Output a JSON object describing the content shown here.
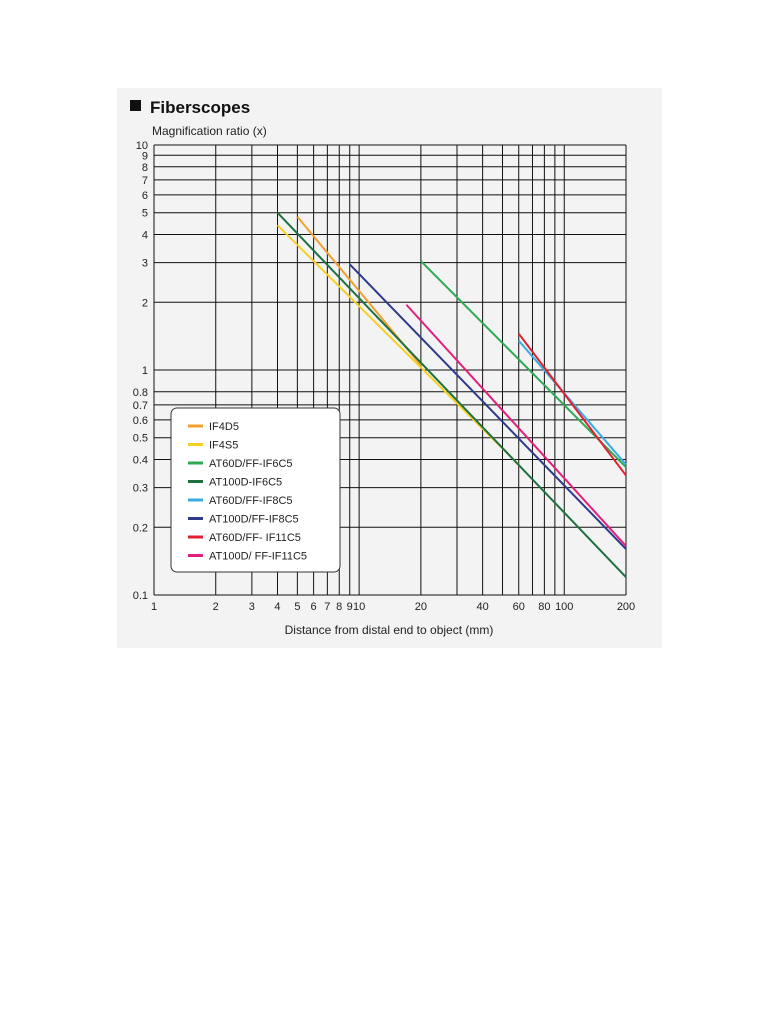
{
  "chart_data": {
    "type": "line",
    "title": "Fiberscopes",
    "ylabel": "Magnification ratio (x)",
    "xlabel": "Distance from distal end to object (mm)",
    "x_scale": "log",
    "y_scale": "log",
    "xlim": [
      1,
      200
    ],
    "ylim": [
      0.1,
      10
    ],
    "x_ticks": [
      1,
      2,
      3,
      4,
      5,
      6,
      7,
      8,
      9,
      10,
      20,
      40,
      60,
      80,
      100,
      200
    ],
    "x_tick_labels": [
      "1",
      "2",
      "3",
      "4",
      "5",
      "6",
      "7",
      "8",
      "9",
      "10",
      "20",
      "40",
      "60",
      "80",
      "100",
      "200"
    ],
    "x_grid": [
      1,
      2,
      3,
      4,
      5,
      6,
      7,
      8,
      9,
      10,
      20,
      30,
      40,
      50,
      60,
      70,
      80,
      90,
      100,
      200
    ],
    "y_ticks": [
      0.1,
      0.2,
      0.3,
      0.4,
      0.5,
      0.6,
      0.7,
      0.8,
      1,
      2,
      3,
      4,
      5,
      6,
      7,
      8,
      9,
      10
    ],
    "y_tick_labels": [
      "0.1",
      "0.2",
      "0.3",
      "0.4",
      "0.5",
      "0.6",
      "0.7",
      "0.8",
      "1",
      "2",
      "3",
      "4",
      "5",
      "6",
      "7",
      "8",
      "9",
      "10"
    ],
    "grid": true,
    "legend_position": "lower-left",
    "series": [
      {
        "name": "IF4D5",
        "color": "#f0a030",
        "x": [
          5,
          20
        ],
        "y": [
          4.8,
          1.05
        ]
      },
      {
        "name": "IF4S5",
        "color": "#f5d020",
        "x": [
          4,
          60
        ],
        "y": [
          4.4,
          0.38
        ]
      },
      {
        "name": "AT60D/FF-IF6C5",
        "color": "#2eaa55",
        "x": [
          20,
          200
        ],
        "y": [
          3.05,
          0.37
        ]
      },
      {
        "name": "AT100D-IF6C5",
        "color": "#1e7040",
        "x": [
          4,
          200
        ],
        "y": [
          5,
          0.12
        ]
      },
      {
        "name": "AT60D/FF-IF8C5",
        "color": "#3aace0",
        "x": [
          60,
          200
        ],
        "y": [
          1.35,
          0.38
        ]
      },
      {
        "name": "AT100D/FF-IF8C5",
        "color": "#2e3a8a",
        "x": [
          9,
          200
        ],
        "y": [
          2.95,
          0.16
        ]
      },
      {
        "name": "AT60D/FF- IF11C5",
        "color": "#e02030",
        "x": [
          60,
          200
        ],
        "y": [
          1.45,
          0.34
        ]
      },
      {
        "name": "AT100D/ FF-IF11C5",
        "color": "#e0207a",
        "x": [
          17,
          200
        ],
        "y": [
          1.95,
          0.165
        ]
      }
    ]
  }
}
